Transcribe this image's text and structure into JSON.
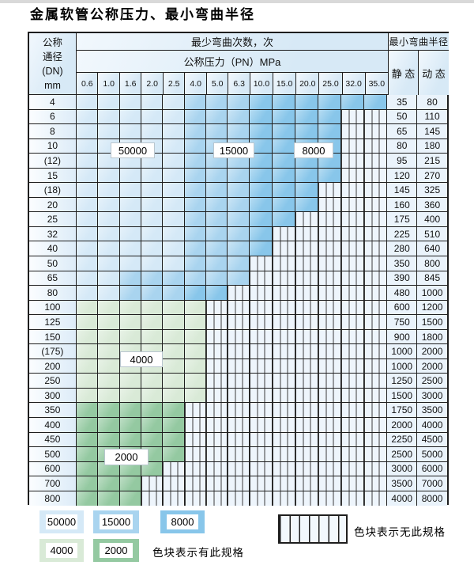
{
  "title": "金属软管公称压力、最小弯曲半径",
  "table": {
    "header": {
      "dn_lines": [
        "公称",
        "通径",
        "(DN)",
        "mm"
      ],
      "cycles_title": "最少弯曲次数，次",
      "pressure_title": "公称压力（PN）MPa",
      "pressures": [
        "0.6",
        "1.0",
        "1.6",
        "2.0",
        "2.5",
        "4.0",
        "5.0",
        "6.3",
        "10.0",
        "15.0",
        "20.0",
        "25.0",
        "32.0",
        "35.0"
      ],
      "radius_title": "最小弯曲半径",
      "static_label": "静 态",
      "dynamic_label": "动 态"
    },
    "zone_colors": {
      "L": "#d5e9f7",
      "M": "#a9d4ef",
      "D": "#88c6ea",
      "G": "#d9ead7",
      "E": "#94c9a1"
    },
    "zone_cycles": {
      "L": "50000",
      "M": "15000",
      "D": "8000",
      "G": "4000",
      "E": "2000",
      "S": "无此规格"
    },
    "cycle_labels": [
      "50000",
      "15000",
      "8000",
      "4000",
      "2000"
    ],
    "rows": [
      {
        "dn": "4",
        "cells": "LLLLLMMMDDDDDD",
        "static": "35",
        "dynamic": "80"
      },
      {
        "dn": "6",
        "cells": "LLLLLMMMDDDDSS",
        "static": "50",
        "dynamic": "110"
      },
      {
        "dn": "8",
        "cells": "LLLLLMMMDDDDSS",
        "static": "65",
        "dynamic": "145"
      },
      {
        "dn": "10",
        "cells": "LLLLLMMMDDDDSS",
        "static": "80",
        "dynamic": "180"
      },
      {
        "dn": "(12)",
        "cells": "LLLLLMMMDDDDSS",
        "static": "95",
        "dynamic": "215"
      },
      {
        "dn": "15",
        "cells": "LLLLLMMMDDDDSS",
        "static": "120",
        "dynamic": "270"
      },
      {
        "dn": "(18)",
        "cells": "LLLLLMMMDDDSSS",
        "static": "145",
        "dynamic": "325"
      },
      {
        "dn": "20",
        "cells": "LLLLLMMMDDDSSS",
        "static": "160",
        "dynamic": "360"
      },
      {
        "dn": "25",
        "cells": "LLLLLMMMDDSSSS",
        "static": "175",
        "dynamic": "400"
      },
      {
        "dn": "32",
        "cells": "LLLLLMMMDSSSSS",
        "static": "225",
        "dynamic": "510"
      },
      {
        "dn": "40",
        "cells": "LLLLLMMMDSSSSS",
        "static": "280",
        "dynamic": "640"
      },
      {
        "dn": "50",
        "cells": "LLLLLMMMSSSSSS",
        "static": "350",
        "dynamic": "800"
      },
      {
        "dn": "65",
        "cells": "LLMMMMMMSSSSSS",
        "static": "390",
        "dynamic": "845"
      },
      {
        "dn": "80",
        "cells": "LLMMMDDSSSSSSS",
        "static": "480",
        "dynamic": "1000"
      },
      {
        "dn": "100",
        "cells": "GGGGGGSSSSSSSS",
        "static": "600",
        "dynamic": "1200"
      },
      {
        "dn": "125",
        "cells": "GGGGGGSSSSSSSS",
        "static": "750",
        "dynamic": "1500"
      },
      {
        "dn": "150",
        "cells": "GGGGGGSSSSSSSS",
        "static": "900",
        "dynamic": "1800"
      },
      {
        "dn": "(175)",
        "cells": "GGGGGGSSSSSSSS",
        "static": "1000",
        "dynamic": "2000"
      },
      {
        "dn": "200",
        "cells": "GGGGGGSSSSSSSS",
        "static": "1000",
        "dynamic": "2000"
      },
      {
        "dn": "250",
        "cells": "GGGGGGSSSSSSSS",
        "static": "1250",
        "dynamic": "2500"
      },
      {
        "dn": "300",
        "cells": "GGGGGGSSSSSSSS",
        "static": "1500",
        "dynamic": "3000"
      },
      {
        "dn": "350",
        "cells": "EEEEESSSSSSSSS",
        "static": "1750",
        "dynamic": "3500"
      },
      {
        "dn": "400",
        "cells": "EEEEESSSSSSSSS",
        "static": "2000",
        "dynamic": "4000"
      },
      {
        "dn": "450",
        "cells": "EEEEESSSSSSSSS",
        "static": "2250",
        "dynamic": "4500"
      },
      {
        "dn": "500",
        "cells": "EEEEESSSSSSSSS",
        "static": "2500",
        "dynamic": "5000"
      },
      {
        "dn": "600",
        "cells": "EEEESSSSSSSSSS",
        "static": "3000",
        "dynamic": "6000"
      },
      {
        "dn": "700",
        "cells": "EEESSSSSSSSSSS",
        "static": "3500",
        "dynamic": "7000"
      },
      {
        "dn": "800",
        "cells": "EEESSSSSSSSSSS",
        "static": "4000",
        "dynamic": "8000"
      }
    ]
  },
  "legend": {
    "items": [
      {
        "label": "50000",
        "zone": "L"
      },
      {
        "label": "15000",
        "zone": "M"
      },
      {
        "label": "8000",
        "zone": "D"
      },
      {
        "label": "4000",
        "zone": "G"
      },
      {
        "label": "2000",
        "zone": "E"
      }
    ],
    "has_spec_text": "色块表示有此规格",
    "no_spec_text": "色块表示无此规格"
  }
}
